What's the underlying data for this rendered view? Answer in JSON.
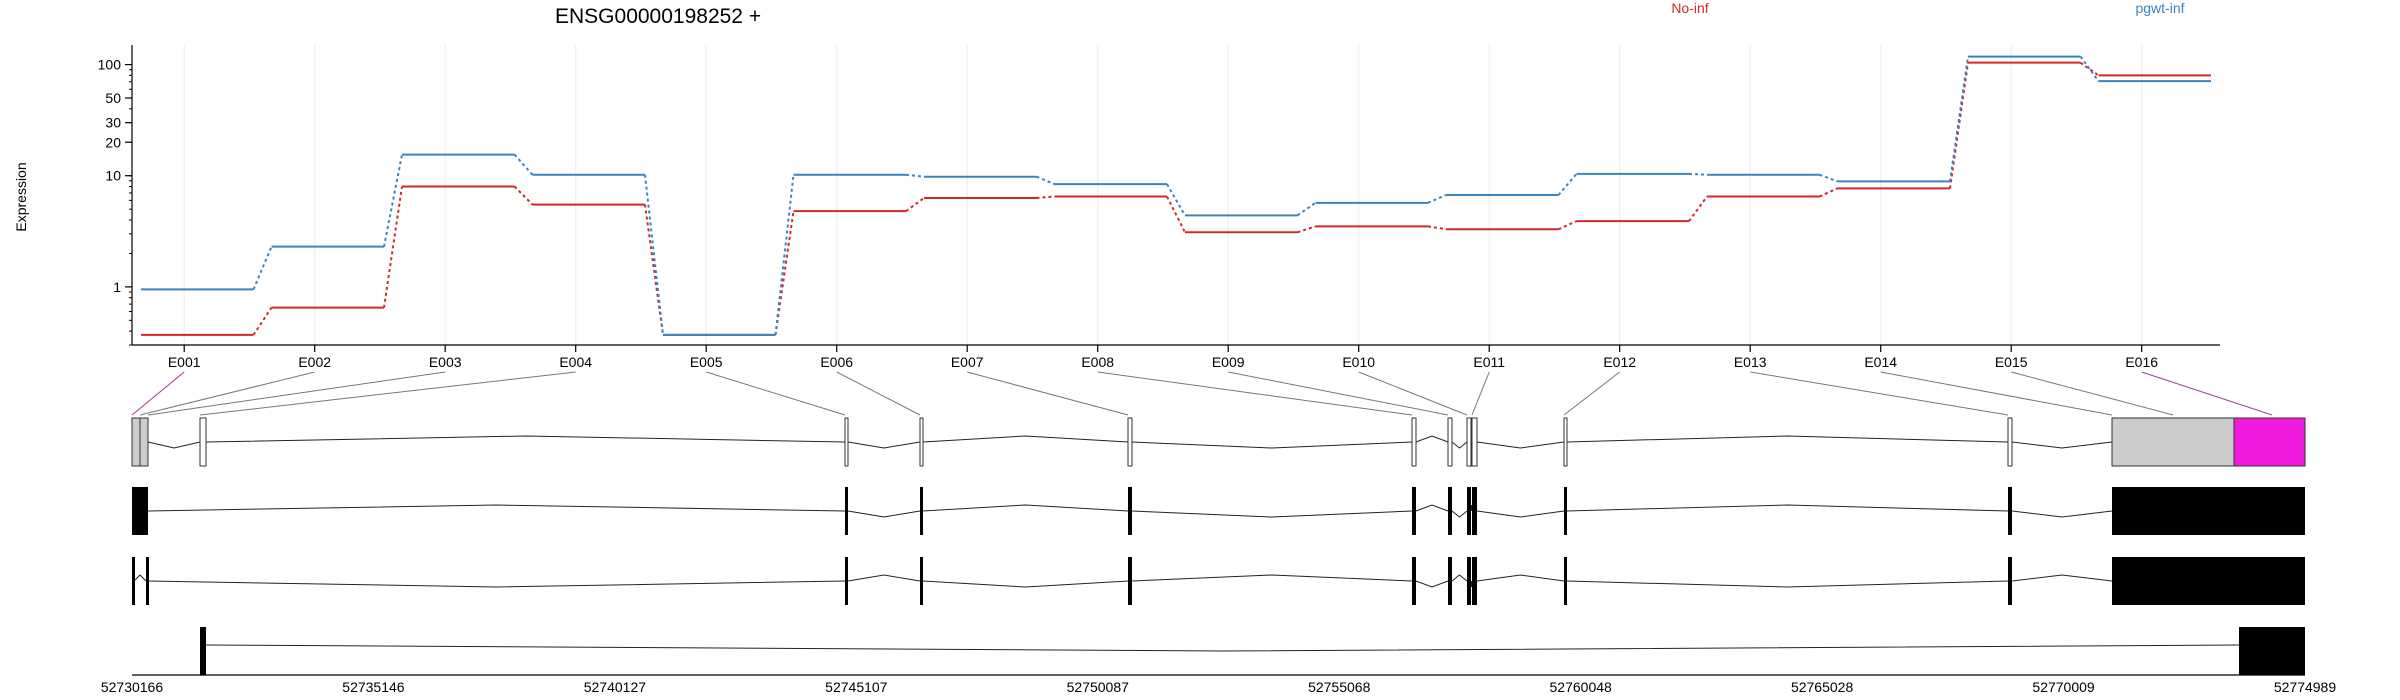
{
  "chart_data": {
    "type": "line",
    "title": "ENSG00000198252 +",
    "ylabel": "Expression",
    "xlabel": "",
    "y_scale": "log",
    "ylim": [
      0.3,
      150
    ],
    "grid": "vertical",
    "legend_placement": "top",
    "categories": [
      "E001",
      "E002",
      "E003",
      "E004",
      "E005",
      "E006",
      "E007",
      "E008",
      "E009",
      "E010",
      "E011",
      "E012",
      "E013",
      "E014",
      "E015",
      "E016"
    ],
    "y_ticks": [
      {
        "value": 1,
        "label": "1"
      },
      {
        "value": 10,
        "label": "10"
      },
      {
        "value": 20,
        "label": "20"
      },
      {
        "value": 30,
        "label": "30"
      },
      {
        "value": 50,
        "label": "50"
      },
      {
        "value": 100,
        "label": "100"
      }
    ],
    "series": [
      {
        "name": "No-inf",
        "color": "#d62728",
        "values": [
          0.37,
          0.65,
          8.0,
          5.5,
          0.37,
          4.8,
          6.3,
          6.5,
          3.1,
          3.5,
          3.3,
          3.9,
          6.5,
          7.7,
          104,
          80
        ]
      },
      {
        "name": "pgwt-inf",
        "color": "#3a84c0",
        "values": [
          0.95,
          2.3,
          15.5,
          10.2,
          0.37,
          10.2,
          9.8,
          8.4,
          4.4,
          5.7,
          6.7,
          10.4,
          10.2,
          8.9,
          118,
          71
        ]
      }
    ],
    "genomic_axis": {
      "labels": [
        "52730166",
        "52735146",
        "52740127",
        "52745107",
        "52750087",
        "52755068",
        "52760048",
        "52765028",
        "52770009",
        "52774989"
      ]
    },
    "exon_highlight_color": "#f01bdc"
  }
}
